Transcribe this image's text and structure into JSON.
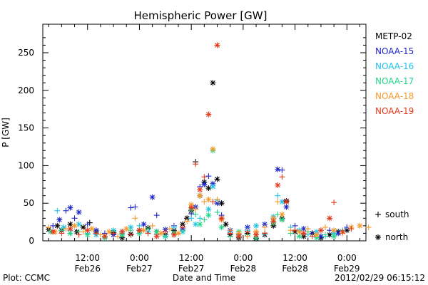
{
  "chart_data": {
    "type": "scatter",
    "title": "Hemispheric Power [GW]",
    "ylabel": "P [GW]",
    "xlabel": "Date and Time",
    "ylim": [
      0,
      280
    ],
    "xlim": [
      2.5,
      80
    ],
    "x_unit": "hours since 2012-02-26 00:00 UT",
    "yticks": [
      0,
      50,
      100,
      150,
      200,
      250
    ],
    "xticks": [
      {
        "x": 12,
        "time": "12:00",
        "date": "Feb26"
      },
      {
        "x": 24,
        "time": "0:00",
        "date": "Feb27"
      },
      {
        "x": 36,
        "time": "12:00",
        "date": "Feb27"
      },
      {
        "x": 48,
        "time": "0:00",
        "date": "Feb28"
      },
      {
        "x": 60,
        "time": "12:00",
        "date": "Feb28"
      },
      {
        "x": 72,
        "time": "0:00",
        "date": "Feb29"
      }
    ],
    "legend_position": "right",
    "marker_legend": [
      {
        "symbol": "+",
        "label": "south"
      },
      {
        "symbol": "*",
        "label": "north"
      }
    ],
    "series": [
      {
        "name": "METP-02",
        "color": "#000000",
        "points": [
          [
            3,
            15,
            "*"
          ],
          [
            5,
            20,
            "*"
          ],
          [
            6,
            14,
            "*"
          ],
          [
            8,
            22,
            "*"
          ],
          [
            9.5,
            12,
            "*"
          ],
          [
            11,
            18,
            "*"
          ],
          [
            12.5,
            24,
            "+"
          ],
          [
            14,
            12,
            "*"
          ],
          [
            16,
            6,
            "*"
          ],
          [
            18,
            11,
            "*"
          ],
          [
            20,
            4,
            "*"
          ],
          [
            22,
            9,
            "*"
          ],
          [
            24,
            14,
            "*"
          ],
          [
            26,
            17,
            "*"
          ],
          [
            28,
            12,
            "*"
          ],
          [
            30,
            8,
            "*"
          ],
          [
            32,
            14,
            "*"
          ],
          [
            34,
            22,
            "*"
          ],
          [
            35,
            30,
            "*"
          ],
          [
            36,
            40,
            "*"
          ],
          [
            37,
            105,
            "+"
          ],
          [
            38,
            60,
            "*"
          ],
          [
            39,
            78,
            "*"
          ],
          [
            40,
            70,
            "*"
          ],
          [
            41,
            210,
            "*"
          ],
          [
            42,
            82,
            "*"
          ],
          [
            43,
            50,
            "*"
          ],
          [
            44,
            22,
            "*"
          ],
          [
            45,
            8,
            "*"
          ],
          [
            47,
            4,
            "*"
          ],
          [
            49,
            10,
            "*"
          ],
          [
            51,
            3,
            "*"
          ],
          [
            53,
            8,
            "*"
          ],
          [
            55,
            20,
            "*"
          ],
          [
            57,
            30,
            "*"
          ],
          [
            58,
            53,
            "*"
          ],
          [
            60,
            12,
            "*"
          ],
          [
            62,
            6,
            "*"
          ],
          [
            64,
            10,
            "*"
          ],
          [
            66,
            4,
            "*"
          ],
          [
            68,
            8,
            "*"
          ],
          [
            70,
            12,
            "*"
          ],
          [
            72,
            14,
            "*"
          ]
        ]
      },
      {
        "name": "NOAA-15",
        "color": "#1f27c8",
        "points": [
          [
            4,
            20,
            "+"
          ],
          [
            5.5,
            28,
            "*"
          ],
          [
            7,
            40,
            "+"
          ],
          [
            8,
            44,
            "*"
          ],
          [
            9,
            30,
            "+"
          ],
          [
            10,
            38,
            "*"
          ],
          [
            12,
            22,
            "+"
          ],
          [
            14,
            14,
            "*"
          ],
          [
            16,
            10,
            "+"
          ],
          [
            18,
            8,
            "*"
          ],
          [
            20,
            12,
            "+"
          ],
          [
            22,
            44,
            "+"
          ],
          [
            23,
            45,
            "+"
          ],
          [
            25,
            22,
            "*"
          ],
          [
            27,
            58,
            "*"
          ],
          [
            28,
            34,
            "+"
          ],
          [
            30,
            15,
            "*"
          ],
          [
            32,
            20,
            "+"
          ],
          [
            34,
            16,
            "*"
          ],
          [
            36,
            36,
            "+"
          ],
          [
            37,
            45,
            "*"
          ],
          [
            38,
            72,
            "+"
          ],
          [
            39,
            75,
            "*"
          ],
          [
            40,
            86,
            "+"
          ],
          [
            41,
            76,
            "*"
          ],
          [
            42,
            50,
            "*"
          ],
          [
            43,
            34,
            "+"
          ],
          [
            45,
            14,
            "*"
          ],
          [
            47,
            8,
            "+"
          ],
          [
            49,
            18,
            "*"
          ],
          [
            51,
            12,
            "+"
          ],
          [
            53,
            22,
            "*"
          ],
          [
            55,
            30,
            "+"
          ],
          [
            56,
            95,
            "*"
          ],
          [
            57,
            94,
            "+"
          ],
          [
            58,
            45,
            "*"
          ],
          [
            60,
            20,
            "+"
          ],
          [
            62,
            16,
            "*"
          ],
          [
            64,
            10,
            "+"
          ],
          [
            66,
            6,
            "*"
          ],
          [
            68,
            14,
            "+"
          ],
          [
            70,
            10,
            "*"
          ],
          [
            72,
            18,
            "+"
          ]
        ]
      },
      {
        "name": "NOAA-16",
        "color": "#22c3e6",
        "points": [
          [
            5,
            40,
            "+"
          ],
          [
            6.5,
            18,
            "*"
          ],
          [
            8,
            14,
            "+"
          ],
          [
            10,
            22,
            "*"
          ],
          [
            12,
            10,
            "+"
          ],
          [
            14,
            8,
            "*"
          ],
          [
            16,
            6,
            "+"
          ],
          [
            18,
            14,
            "*"
          ],
          [
            20,
            10,
            "+"
          ],
          [
            22,
            18,
            "*"
          ],
          [
            24,
            20,
            "+"
          ],
          [
            26,
            12,
            "*"
          ],
          [
            28,
            8,
            "+"
          ],
          [
            30,
            6,
            "*"
          ],
          [
            32,
            18,
            "+"
          ],
          [
            34,
            12,
            "*"
          ],
          [
            36,
            30,
            "+"
          ],
          [
            37,
            22,
            "*"
          ],
          [
            38,
            30,
            "+"
          ],
          [
            40,
            42,
            "*"
          ],
          [
            41,
            72,
            "*"
          ],
          [
            42,
            54,
            "+"
          ],
          [
            43,
            30,
            "*"
          ],
          [
            45,
            12,
            "+"
          ],
          [
            47,
            6,
            "*"
          ],
          [
            49,
            14,
            "+"
          ],
          [
            51,
            20,
            "*"
          ],
          [
            53,
            8,
            "+"
          ],
          [
            55,
            32,
            "*"
          ],
          [
            56,
            60,
            "+"
          ],
          [
            57,
            52,
            "*"
          ],
          [
            59,
            18,
            "+"
          ],
          [
            61,
            14,
            "*"
          ],
          [
            63,
            8,
            "+"
          ],
          [
            65,
            12,
            "*"
          ],
          [
            67,
            6,
            "+"
          ],
          [
            69,
            10,
            "*"
          ],
          [
            71,
            14,
            "+"
          ]
        ]
      },
      {
        "name": "NOAA-17",
        "color": "#26d488",
        "points": [
          [
            3.5,
            12,
            "*"
          ],
          [
            6,
            14,
            "+"
          ],
          [
            8,
            10,
            "*"
          ],
          [
            10,
            12,
            "+"
          ],
          [
            12,
            8,
            "*"
          ],
          [
            14,
            10,
            "+"
          ],
          [
            16,
            4,
            "*"
          ],
          [
            18,
            12,
            "+"
          ],
          [
            20,
            8,
            "*"
          ],
          [
            22,
            14,
            "+"
          ],
          [
            24,
            10,
            "*"
          ],
          [
            26,
            16,
            "+"
          ],
          [
            28,
            12,
            "*"
          ],
          [
            30,
            6,
            "+"
          ],
          [
            32,
            10,
            "*"
          ],
          [
            34,
            14,
            "+"
          ],
          [
            36,
            42,
            "*"
          ],
          [
            37,
            35,
            "+"
          ],
          [
            38,
            22,
            "*"
          ],
          [
            39,
            28,
            "+"
          ],
          [
            40,
            34,
            "*"
          ],
          [
            41,
            120,
            "*"
          ],
          [
            42,
            38,
            "+"
          ],
          [
            43,
            18,
            "*"
          ],
          [
            45,
            6,
            "+"
          ],
          [
            47,
            12,
            "*"
          ],
          [
            49,
            8,
            "+"
          ],
          [
            51,
            4,
            "*"
          ],
          [
            53,
            10,
            "+"
          ],
          [
            55,
            24,
            "*"
          ],
          [
            56,
            35,
            "+"
          ],
          [
            57,
            28,
            "*"
          ],
          [
            59,
            10,
            "+"
          ],
          [
            61,
            6,
            "*"
          ],
          [
            63,
            12,
            "+"
          ],
          [
            65,
            4,
            "*"
          ],
          [
            67,
            8,
            "+"
          ],
          [
            69,
            6,
            "*"
          ],
          [
            71,
            12,
            "+"
          ]
        ]
      },
      {
        "name": "NOAA-18",
        "color": "#f59a2b",
        "points": [
          [
            3,
            18,
            "+"
          ],
          [
            4.5,
            12,
            "*"
          ],
          [
            7,
            16,
            "+"
          ],
          [
            9,
            20,
            "*"
          ],
          [
            11,
            12,
            "+"
          ],
          [
            13,
            16,
            "*"
          ],
          [
            15,
            8,
            "+"
          ],
          [
            17,
            12,
            "*"
          ],
          [
            19,
            6,
            "+"
          ],
          [
            21,
            16,
            "*"
          ],
          [
            23,
            30,
            "+"
          ],
          [
            25,
            14,
            "*"
          ],
          [
            27,
            20,
            "+"
          ],
          [
            29,
            10,
            "*"
          ],
          [
            31,
            16,
            "+"
          ],
          [
            33,
            10,
            "*"
          ],
          [
            35,
            26,
            "+"
          ],
          [
            36,
            48,
            "*"
          ],
          [
            37,
            42,
            "+"
          ],
          [
            38,
            60,
            "*"
          ],
          [
            39,
            52,
            "+"
          ],
          [
            40,
            55,
            "*"
          ],
          [
            41,
            122,
            "*"
          ],
          [
            42,
            55,
            "+"
          ],
          [
            43,
            28,
            "*"
          ],
          [
            45,
            14,
            "+"
          ],
          [
            47,
            10,
            "*"
          ],
          [
            49,
            6,
            "+"
          ],
          [
            51,
            12,
            "*"
          ],
          [
            53,
            18,
            "+"
          ],
          [
            55,
            30,
            "*"
          ],
          [
            56,
            52,
            "+"
          ],
          [
            57,
            35,
            "*"
          ],
          [
            59,
            14,
            "+"
          ],
          [
            61,
            12,
            "*"
          ],
          [
            63,
            16,
            "+"
          ],
          [
            65,
            8,
            "*"
          ],
          [
            67,
            18,
            "+"
          ],
          [
            69,
            14,
            "*"
          ],
          [
            71,
            10,
            "+"
          ],
          [
            73,
            18,
            "*"
          ],
          [
            75,
            20,
            "*"
          ],
          [
            77,
            18,
            "+"
          ]
        ]
      },
      {
        "name": "NOAA-19",
        "color": "#e5391c",
        "points": [
          [
            4,
            12,
            "*"
          ],
          [
            6,
            10,
            "+"
          ],
          [
            8,
            16,
            "*"
          ],
          [
            10,
            8,
            "+"
          ],
          [
            12,
            14,
            "*"
          ],
          [
            14,
            10,
            "+"
          ],
          [
            16,
            6,
            "*"
          ],
          [
            18,
            10,
            "+"
          ],
          [
            20,
            12,
            "*"
          ],
          [
            22,
            8,
            "+"
          ],
          [
            24,
            14,
            "*"
          ],
          [
            26,
            10,
            "+"
          ],
          [
            28,
            6,
            "*"
          ],
          [
            30,
            12,
            "+"
          ],
          [
            32,
            8,
            "*"
          ],
          [
            34,
            18,
            "+"
          ],
          [
            36,
            44,
            "*"
          ],
          [
            37,
            102,
            "+"
          ],
          [
            38,
            68,
            "*"
          ],
          [
            39,
            85,
            "+"
          ],
          [
            40,
            168,
            "*"
          ],
          [
            41,
            52,
            "+"
          ],
          [
            42,
            260,
            "*"
          ],
          [
            43,
            30,
            "*"
          ],
          [
            45,
            10,
            "+"
          ],
          [
            47,
            6,
            "*"
          ],
          [
            49,
            12,
            "+"
          ],
          [
            51,
            8,
            "*"
          ],
          [
            53,
            10,
            "+"
          ],
          [
            55,
            26,
            "*"
          ],
          [
            56,
            74,
            "*"
          ],
          [
            57,
            85,
            "+"
          ],
          [
            58,
            52,
            "*"
          ],
          [
            60,
            14,
            "+"
          ],
          [
            62,
            10,
            "*"
          ],
          [
            64,
            6,
            "+"
          ],
          [
            66,
            14,
            "*"
          ],
          [
            68,
            30,
            "*"
          ],
          [
            69,
            51,
            "+"
          ],
          [
            71,
            12,
            "*"
          ],
          [
            73,
            16,
            "+"
          ]
        ]
      }
    ]
  },
  "footer": {
    "plot_credit": "Plot: CCMC",
    "timestamp": "2012/02/29 06:15:12"
  }
}
